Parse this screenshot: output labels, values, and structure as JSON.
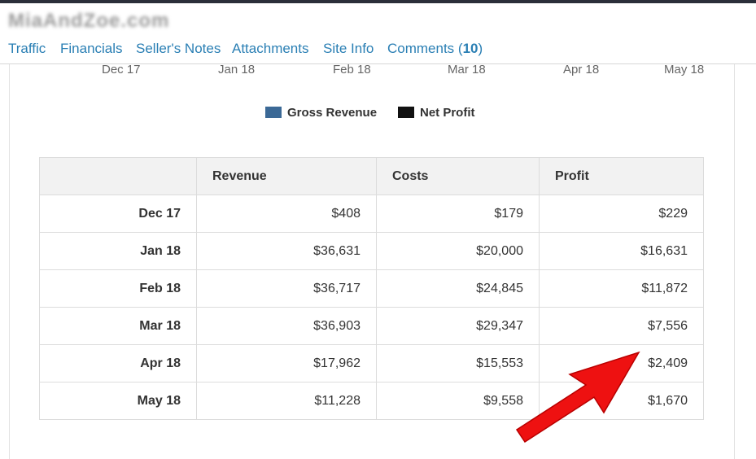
{
  "site": {
    "title": "MiaAndZoe.com"
  },
  "tabs": [
    {
      "label": "Traffic"
    },
    {
      "label": "Financials"
    },
    {
      "label": "Seller's Notes"
    },
    {
      "label": "Attachments"
    },
    {
      "label": "Site Info"
    },
    {
      "label": "Comments (",
      "count": "10",
      "suffix": ")"
    }
  ],
  "chart": {
    "x_axis_labels": [
      "Dec 17",
      "Jan 18",
      "Feb 18",
      "Mar 18",
      "Apr 18",
      "May 18"
    ],
    "legend": [
      {
        "label": "Gross Revenue",
        "color": "#3b6996"
      },
      {
        "label": "Net Profit",
        "color": "#111111"
      }
    ]
  },
  "table": {
    "headers": [
      "",
      "Revenue",
      "Costs",
      "Profit"
    ],
    "rows": [
      {
        "month": "Dec 17",
        "revenue": "$408",
        "costs": "$179",
        "profit": "$229"
      },
      {
        "month": "Jan 18",
        "revenue": "$36,631",
        "costs": "$20,000",
        "profit": "$16,631"
      },
      {
        "month": "Feb 18",
        "revenue": "$36,717",
        "costs": "$24,845",
        "profit": "$11,872"
      },
      {
        "month": "Mar 18",
        "revenue": "$36,903",
        "costs": "$29,347",
        "profit": "$7,556"
      },
      {
        "month": "Apr 18",
        "revenue": "$17,962",
        "costs": "$15,553",
        "profit": "$2,409"
      },
      {
        "month": "May 18",
        "revenue": "$11,228",
        "costs": "$9,558",
        "profit": "$1,670"
      }
    ]
  },
  "annotation": {
    "color": "#ee1111"
  }
}
